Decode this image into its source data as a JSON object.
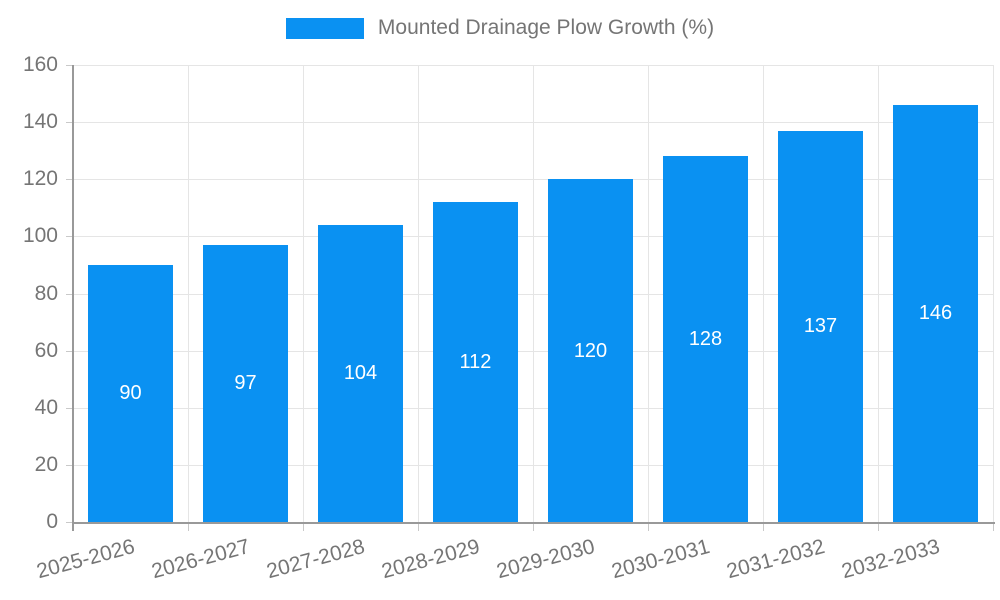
{
  "legend": {
    "label": "Mounted Drainage Plow Growth (%)"
  },
  "colors": {
    "bar": "#0a91f2",
    "grid": "#e5e5e5",
    "axis": "#999999",
    "tick": "#c9c9c9",
    "tick_label": "#757575",
    "legend_text": "#757575",
    "value_label": "#ffffff",
    "background": "#ffffff"
  },
  "chart_data": {
    "type": "bar",
    "title": "Mounted Drainage Plow Growth (%)",
    "categories": [
      "2025-2026",
      "2026-2027",
      "2027-2028",
      "2028-2029",
      "2029-2030",
      "2030-2031",
      "2031-2032",
      "2032-2033"
    ],
    "values": [
      90,
      97,
      104,
      112,
      120,
      128,
      137,
      146
    ],
    "xlabel": "",
    "ylabel": "",
    "ylim": [
      0,
      160
    ],
    "yticks": [
      0,
      20,
      40,
      60,
      80,
      100,
      120,
      140,
      160
    ],
    "grid": true,
    "legend_position": "top-center",
    "value_labels": "inside-center",
    "x_tick_rotation_deg": -15
  }
}
